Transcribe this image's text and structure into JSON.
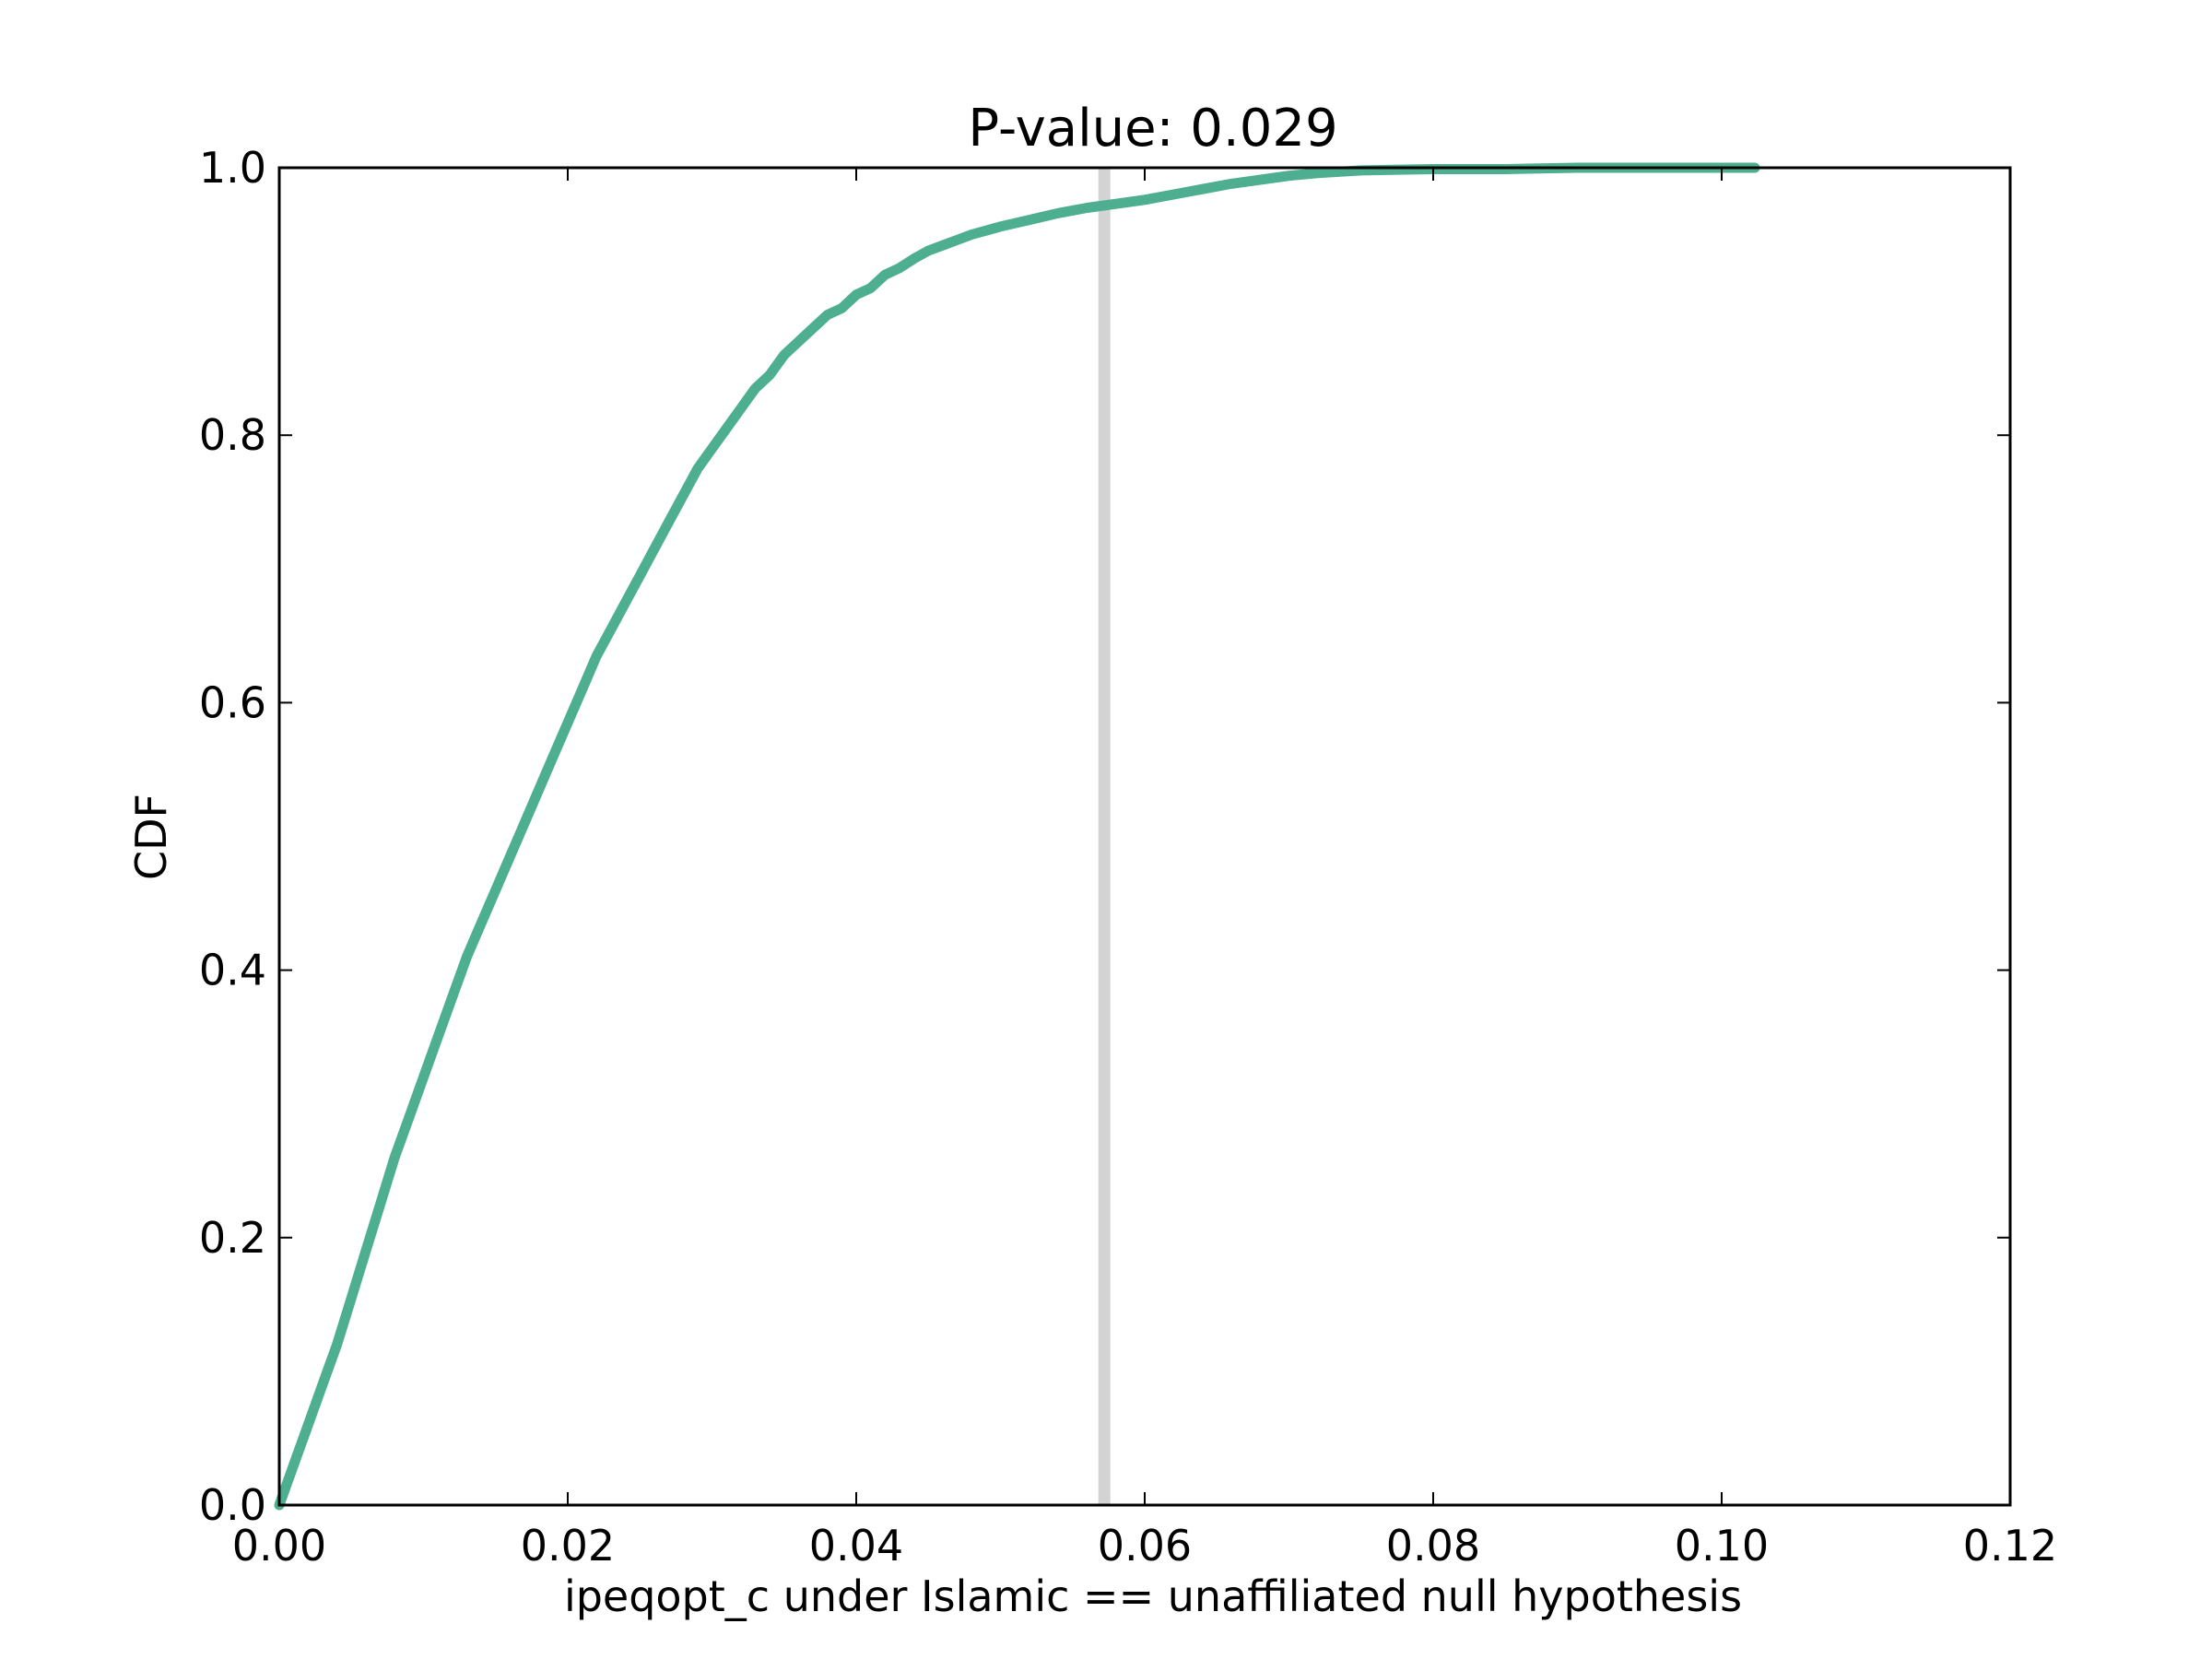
{
  "chart_data": {
    "type": "line",
    "title": "P-value: 0.029",
    "xlabel": "ipeqopt_c under Islamic == unaffiliated null hypothesis",
    "ylabel": "CDF",
    "xlim": [
      0.0,
      0.12
    ],
    "ylim": [
      0.0,
      1.0
    ],
    "xticks": [
      "0.00",
      "0.02",
      "0.04",
      "0.06",
      "0.08",
      "0.10",
      "0.12"
    ],
    "yticks": [
      "0.0",
      "0.2",
      "0.4",
      "0.6",
      "0.8",
      "1.0"
    ],
    "grid": false,
    "series": [
      {
        "color": "#4daf8f",
        "x": [
          0.0,
          0.001,
          0.002,
          0.003,
          0.004,
          0.005,
          0.006,
          0.007,
          0.008,
          0.009,
          0.01,
          0.011,
          0.012,
          0.013,
          0.014,
          0.015,
          0.016,
          0.017,
          0.018,
          0.019,
          0.02,
          0.021,
          0.022,
          0.023,
          0.024,
          0.025,
          0.026,
          0.027,
          0.028,
          0.029,
          0.03,
          0.031,
          0.032,
          0.033,
          0.034,
          0.035,
          0.036,
          0.037,
          0.038,
          0.039,
          0.04,
          0.041,
          0.042,
          0.043,
          0.044,
          0.045,
          0.046,
          0.047,
          0.048,
          0.049,
          0.05,
          0.052,
          0.054,
          0.056,
          0.058,
          0.06,
          0.062,
          0.064,
          0.066,
          0.068,
          0.07,
          0.072,
          0.075,
          0.08,
          0.085,
          0.09,
          0.095,
          0.1023
        ],
        "y": [
          0.0,
          0.03,
          0.06,
          0.09,
          0.12,
          0.155,
          0.19,
          0.225,
          0.26,
          0.29,
          0.32,
          0.35,
          0.38,
          0.41,
          0.435,
          0.46,
          0.485,
          0.51,
          0.535,
          0.56,
          0.585,
          0.61,
          0.635,
          0.655,
          0.675,
          0.695,
          0.715,
          0.735,
          0.755,
          0.775,
          0.79,
          0.805,
          0.82,
          0.835,
          0.845,
          0.86,
          0.87,
          0.88,
          0.89,
          0.895,
          0.905,
          0.91,
          0.92,
          0.925,
          0.932,
          0.938,
          0.942,
          0.946,
          0.95,
          0.953,
          0.956,
          0.961,
          0.966,
          0.97,
          0.973,
          0.976,
          0.98,
          0.984,
          0.988,
          0.991,
          0.994,
          0.996,
          0.998,
          0.999,
          0.999,
          1.0,
          1.0,
          1.0
        ]
      }
    ],
    "vline": {
      "x": 0.0572,
      "color": "#d3d3d3"
    }
  }
}
